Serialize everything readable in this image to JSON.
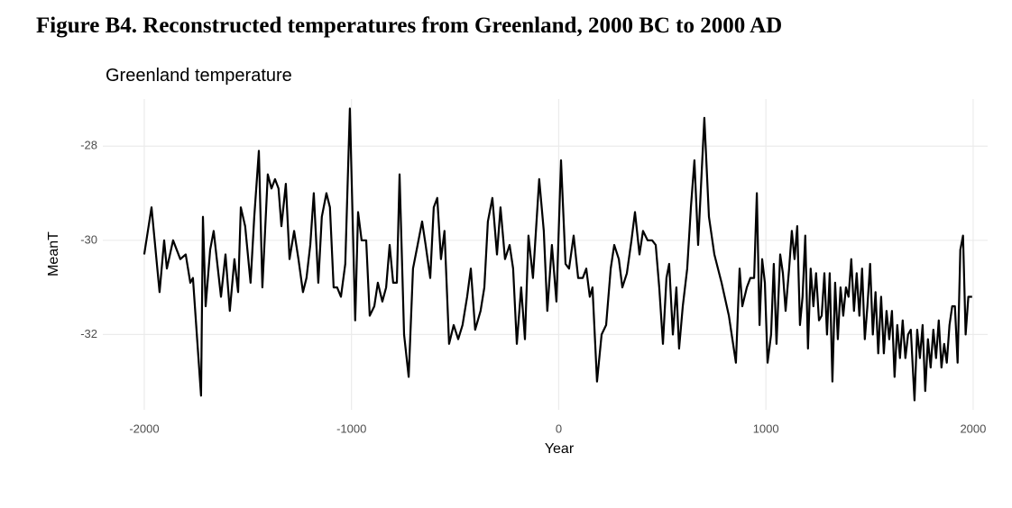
{
  "chart_data": {
    "type": "line",
    "caption": "Figure B4. Reconstructed temperatures from Greenland, 2000 BC to 2000 AD",
    "title": "Greenland temperature",
    "x_label": "Year",
    "y_label": "MeanT",
    "xlim": [
      -2200,
      2070
    ],
    "ylim": [
      -33.6,
      -27.0
    ],
    "xticks": [
      -2000,
      -1000,
      0,
      1000,
      2000
    ],
    "yticks": [
      -28,
      -30,
      -32
    ],
    "grid": true,
    "x": [
      -2000,
      -1965,
      -1926,
      -1904,
      -1891,
      -1861,
      -1826,
      -1800,
      -1778,
      -1765,
      -1726,
      -1717,
      -1704,
      -1682,
      -1665,
      -1630,
      -1608,
      -1587,
      -1565,
      -1547,
      -1534,
      -1513,
      -1487,
      -1469,
      -1447,
      -1430,
      -1404,
      -1386,
      -1369,
      -1352,
      -1338,
      -1317,
      -1299,
      -1277,
      -1256,
      -1234,
      -1217,
      -1199,
      -1182,
      -1160,
      -1143,
      -1121,
      -1104,
      -1086,
      -1069,
      -1051,
      -1030,
      -1008,
      -982,
      -968,
      -951,
      -929,
      -912,
      -890,
      -873,
      -851,
      -833,
      -816,
      -799,
      -781,
      -768,
      -746,
      -724,
      -703,
      -681,
      -659,
      -642,
      -620,
      -603,
      -586,
      -568,
      -551,
      -529,
      -507,
      -485,
      -464,
      -442,
      -424,
      -403,
      -377,
      -359,
      -342,
      -320,
      -298,
      -281,
      -259,
      -237,
      -220,
      -202,
      -181,
      -163,
      -146,
      -124,
      -94,
      -72,
      -55,
      -33,
      -11,
      11,
      33,
      50,
      72,
      94,
      116,
      133,
      150,
      163,
      185,
      207,
      229,
      251,
      268,
      290,
      307,
      329,
      351,
      368,
      390,
      407,
      429,
      451,
      468,
      485,
      503,
      520,
      533,
      551,
      568,
      581,
      599,
      620,
      638,
      655,
      673,
      703,
      725,
      751,
      786,
      821,
      855,
      873,
      886,
      908,
      925,
      943,
      956,
      969,
      982,
      995,
      1008,
      1025,
      1038,
      1051,
      1069,
      1082,
      1095,
      1112,
      1125,
      1138,
      1151,
      1164,
      1177,
      1190,
      1203,
      1216,
      1229,
      1242,
      1256,
      1269,
      1282,
      1295,
      1308,
      1321,
      1334,
      1347,
      1360,
      1373,
      1386,
      1399,
      1412,
      1425,
      1438,
      1451,
      1464,
      1477,
      1490,
      1503,
      1516,
      1529,
      1542,
      1556,
      1569,
      1582,
      1595,
      1608,
      1621,
      1634,
      1647,
      1660,
      1673,
      1686,
      1699,
      1717,
      1730,
      1743,
      1756,
      1769,
      1782,
      1795,
      1808,
      1821,
      1834,
      1847,
      1860,
      1873,
      1886,
      1899,
      1912,
      1925,
      1938,
      1951,
      1964,
      1977,
      1995
    ],
    "series": [
      {
        "name": "MeanT",
        "color": "#000000",
        "values": [
          -30.3,
          -29.3,
          -31.1,
          -30.0,
          -30.6,
          -30.0,
          -30.4,
          -30.3,
          -30.9,
          -30.8,
          -33.3,
          -29.5,
          -31.4,
          -30.2,
          -29.8,
          -31.2,
          -30.3,
          -31.5,
          -30.4,
          -31.1,
          -29.3,
          -29.7,
          -30.9,
          -29.5,
          -28.1,
          -31.0,
          -28.6,
          -28.9,
          -28.7,
          -28.9,
          -29.7,
          -28.8,
          -30.4,
          -29.8,
          -30.4,
          -31.1,
          -30.8,
          -30.1,
          -29.0,
          -30.9,
          -29.5,
          -29.0,
          -29.3,
          -31.0,
          -31.0,
          -31.2,
          -30.5,
          -27.2,
          -31.7,
          -29.4,
          -30.0,
          -30.0,
          -31.6,
          -31.4,
          -30.9,
          -31.3,
          -31.0,
          -30.1,
          -30.9,
          -30.9,
          -28.6,
          -32.0,
          -32.9,
          -30.6,
          -30.1,
          -29.6,
          -30.1,
          -30.8,
          -29.3,
          -29.1,
          -30.4,
          -29.8,
          -32.2,
          -31.8,
          -32.1,
          -31.8,
          -31.2,
          -30.6,
          -31.9,
          -31.5,
          -31.0,
          -29.6,
          -29.1,
          -30.3,
          -29.3,
          -30.4,
          -30.1,
          -30.6,
          -32.2,
          -31.0,
          -32.1,
          -29.9,
          -30.8,
          -28.7,
          -29.8,
          -31.5,
          -30.1,
          -31.3,
          -28.3,
          -30.5,
          -30.6,
          -29.9,
          -30.8,
          -30.8,
          -30.6,
          -31.2,
          -31.0,
          -33.0,
          -32.0,
          -31.8,
          -30.6,
          -30.1,
          -30.4,
          -31.0,
          -30.7,
          -30.0,
          -29.4,
          -30.3,
          -29.8,
          -30.0,
          -30.0,
          -30.1,
          -31.0,
          -32.2,
          -30.8,
          -30.5,
          -32.0,
          -31.0,
          -32.3,
          -31.4,
          -30.6,
          -29.3,
          -28.3,
          -30.1,
          -27.4,
          -29.5,
          -30.3,
          -30.9,
          -31.6,
          -32.6,
          -30.6,
          -31.4,
          -31.0,
          -30.8,
          -30.8,
          -29.0,
          -31.8,
          -30.4,
          -30.9,
          -32.6,
          -32.0,
          -30.5,
          -32.2,
          -30.3,
          -30.7,
          -31.5,
          -30.6,
          -29.8,
          -30.4,
          -29.7,
          -31.8,
          -31.2,
          -29.9,
          -32.3,
          -30.6,
          -31.4,
          -30.7,
          -31.7,
          -31.6,
          -30.7,
          -32.0,
          -30.7,
          -33.0,
          -30.9,
          -32.1,
          -31.0,
          -31.6,
          -31.0,
          -31.2,
          -30.4,
          -31.5,
          -30.7,
          -31.6,
          -30.6,
          -32.1,
          -31.4,
          -30.5,
          -32.0,
          -31.1,
          -32.4,
          -31.2,
          -32.4,
          -31.5,
          -32.1,
          -31.5,
          -32.9,
          -31.8,
          -32.5,
          -31.7,
          -32.5,
          -32.0,
          -31.9,
          -33.4,
          -31.9,
          -32.5,
          -31.8,
          -33.2,
          -32.1,
          -32.7,
          -31.9,
          -32.5,
          -31.7,
          -32.7,
          -32.2,
          -32.6,
          -31.8,
          -31.4,
          -31.4,
          -32.6,
          -30.2,
          -29.9,
          -32.0,
          -31.2,
          -31.2
        ]
      }
    ]
  }
}
